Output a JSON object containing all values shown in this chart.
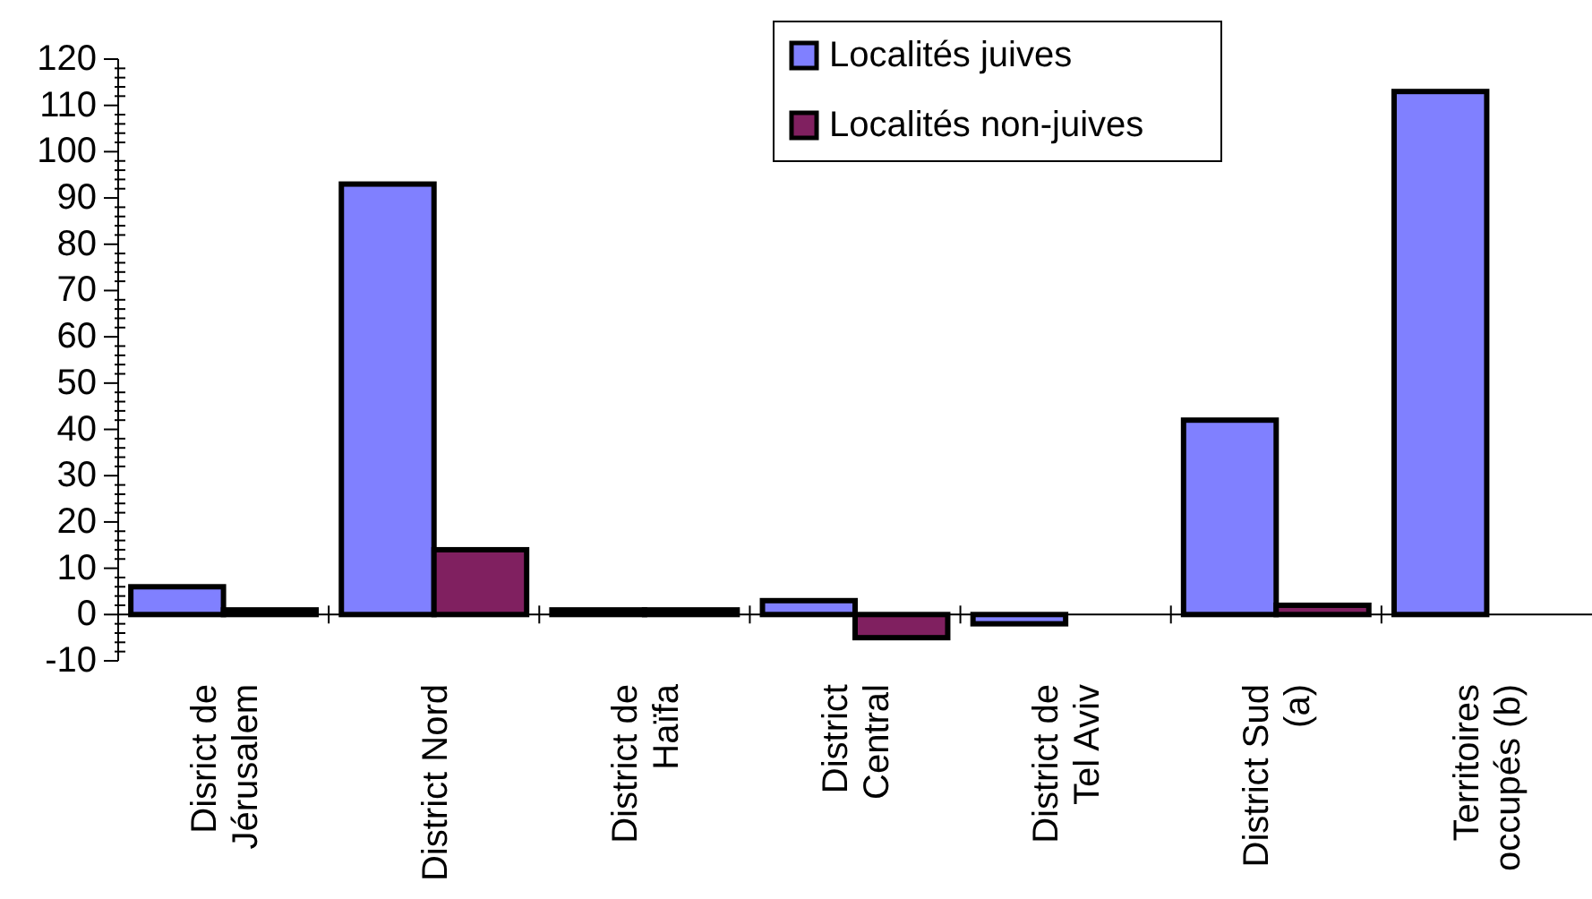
{
  "chart_data": {
    "type": "bar",
    "categories": [
      "Disrict de Jérusalem",
      "District Nord",
      "District de Haïfa",
      "District Central",
      "District de Tel Aviv",
      "District Sud (a)",
      "Territoires occupés (b)"
    ],
    "series": [
      {
        "name": "Localités juives",
        "color": "#8080ff",
        "values": [
          6,
          93,
          1,
          3,
          -2,
          42,
          113
        ]
      },
      {
        "name": "Localités non-juives",
        "color": "#802060",
        "values": [
          1,
          14,
          1,
          -5,
          null,
          2,
          null
        ]
      }
    ],
    "ylim": [
      -10,
      120
    ],
    "yticks": [
      -10,
      {
        "value": -8,
        "label": null
      },
      {
        "value": -6,
        "label": null
      },
      {
        "value": -4,
        "label": null
      },
      {
        "value": -2,
        "label": null
      },
      0,
      {
        "value": 2,
        "label": null
      },
      {
        "value": 4,
        "label": null
      },
      {
        "value": 6,
        "label": null
      },
      {
        "value": 8,
        "label": null
      },
      10,
      {
        "value": 12,
        "label": null
      },
      {
        "value": 14,
        "label": null
      },
      {
        "value": 16,
        "label": null
      },
      {
        "value": 18,
        "label": null
      },
      20,
      {
        "value": 22,
        "label": null
      },
      {
        "value": 24,
        "label": null
      },
      {
        "value": 26,
        "label": null
      },
      {
        "value": 28,
        "label": null
      },
      30,
      {
        "value": 32,
        "label": null
      },
      {
        "value": 34,
        "label": null
      },
      {
        "value": 36,
        "label": null
      },
      {
        "value": 38,
        "label": null
      },
      40,
      {
        "value": 42,
        "label": null
      },
      {
        "value": 44,
        "label": null
      },
      {
        "value": 46,
        "label": null
      },
      {
        "value": 48,
        "label": null
      },
      50,
      {
        "value": 52,
        "label": null
      },
      {
        "value": 54,
        "label": null
      },
      {
        "value": 56,
        "label": null
      },
      {
        "value": 58,
        "label": null
      },
      60,
      {
        "value": 62,
        "label": null
      },
      {
        "value": 64,
        "label": null
      },
      {
        "value": 66,
        "label": null
      },
      {
        "value": 68,
        "label": null
      },
      70,
      {
        "value": 72,
        "label": null
      },
      {
        "value": 74,
        "label": null
      },
      {
        "value": 76,
        "label": null
      },
      {
        "value": 78,
        "label": null
      },
      80,
      {
        "value": 82,
        "label": null
      },
      {
        "value": 84,
        "label": null
      },
      {
        "value": 86,
        "label": null
      },
      {
        "value": 88,
        "label": null
      },
      90,
      {
        "value": 92,
        "label": null
      },
      {
        "value": 94,
        "label": null
      },
      {
        "value": 96,
        "label": null
      },
      {
        "value": 98,
        "label": null
      },
      100,
      {
        "value": 102,
        "label": null
      },
      {
        "value": 104,
        "label": null
      },
      {
        "value": 106,
        "label": null
      },
      {
        "value": 108,
        "label": null
      },
      110,
      {
        "value": 112,
        "label": null
      },
      {
        "value": 114,
        "label": null
      },
      {
        "value": 116,
        "label": null
      },
      {
        "value": 118,
        "label": null
      },
      120
    ],
    "grid": false,
    "legend": "top right"
  }
}
